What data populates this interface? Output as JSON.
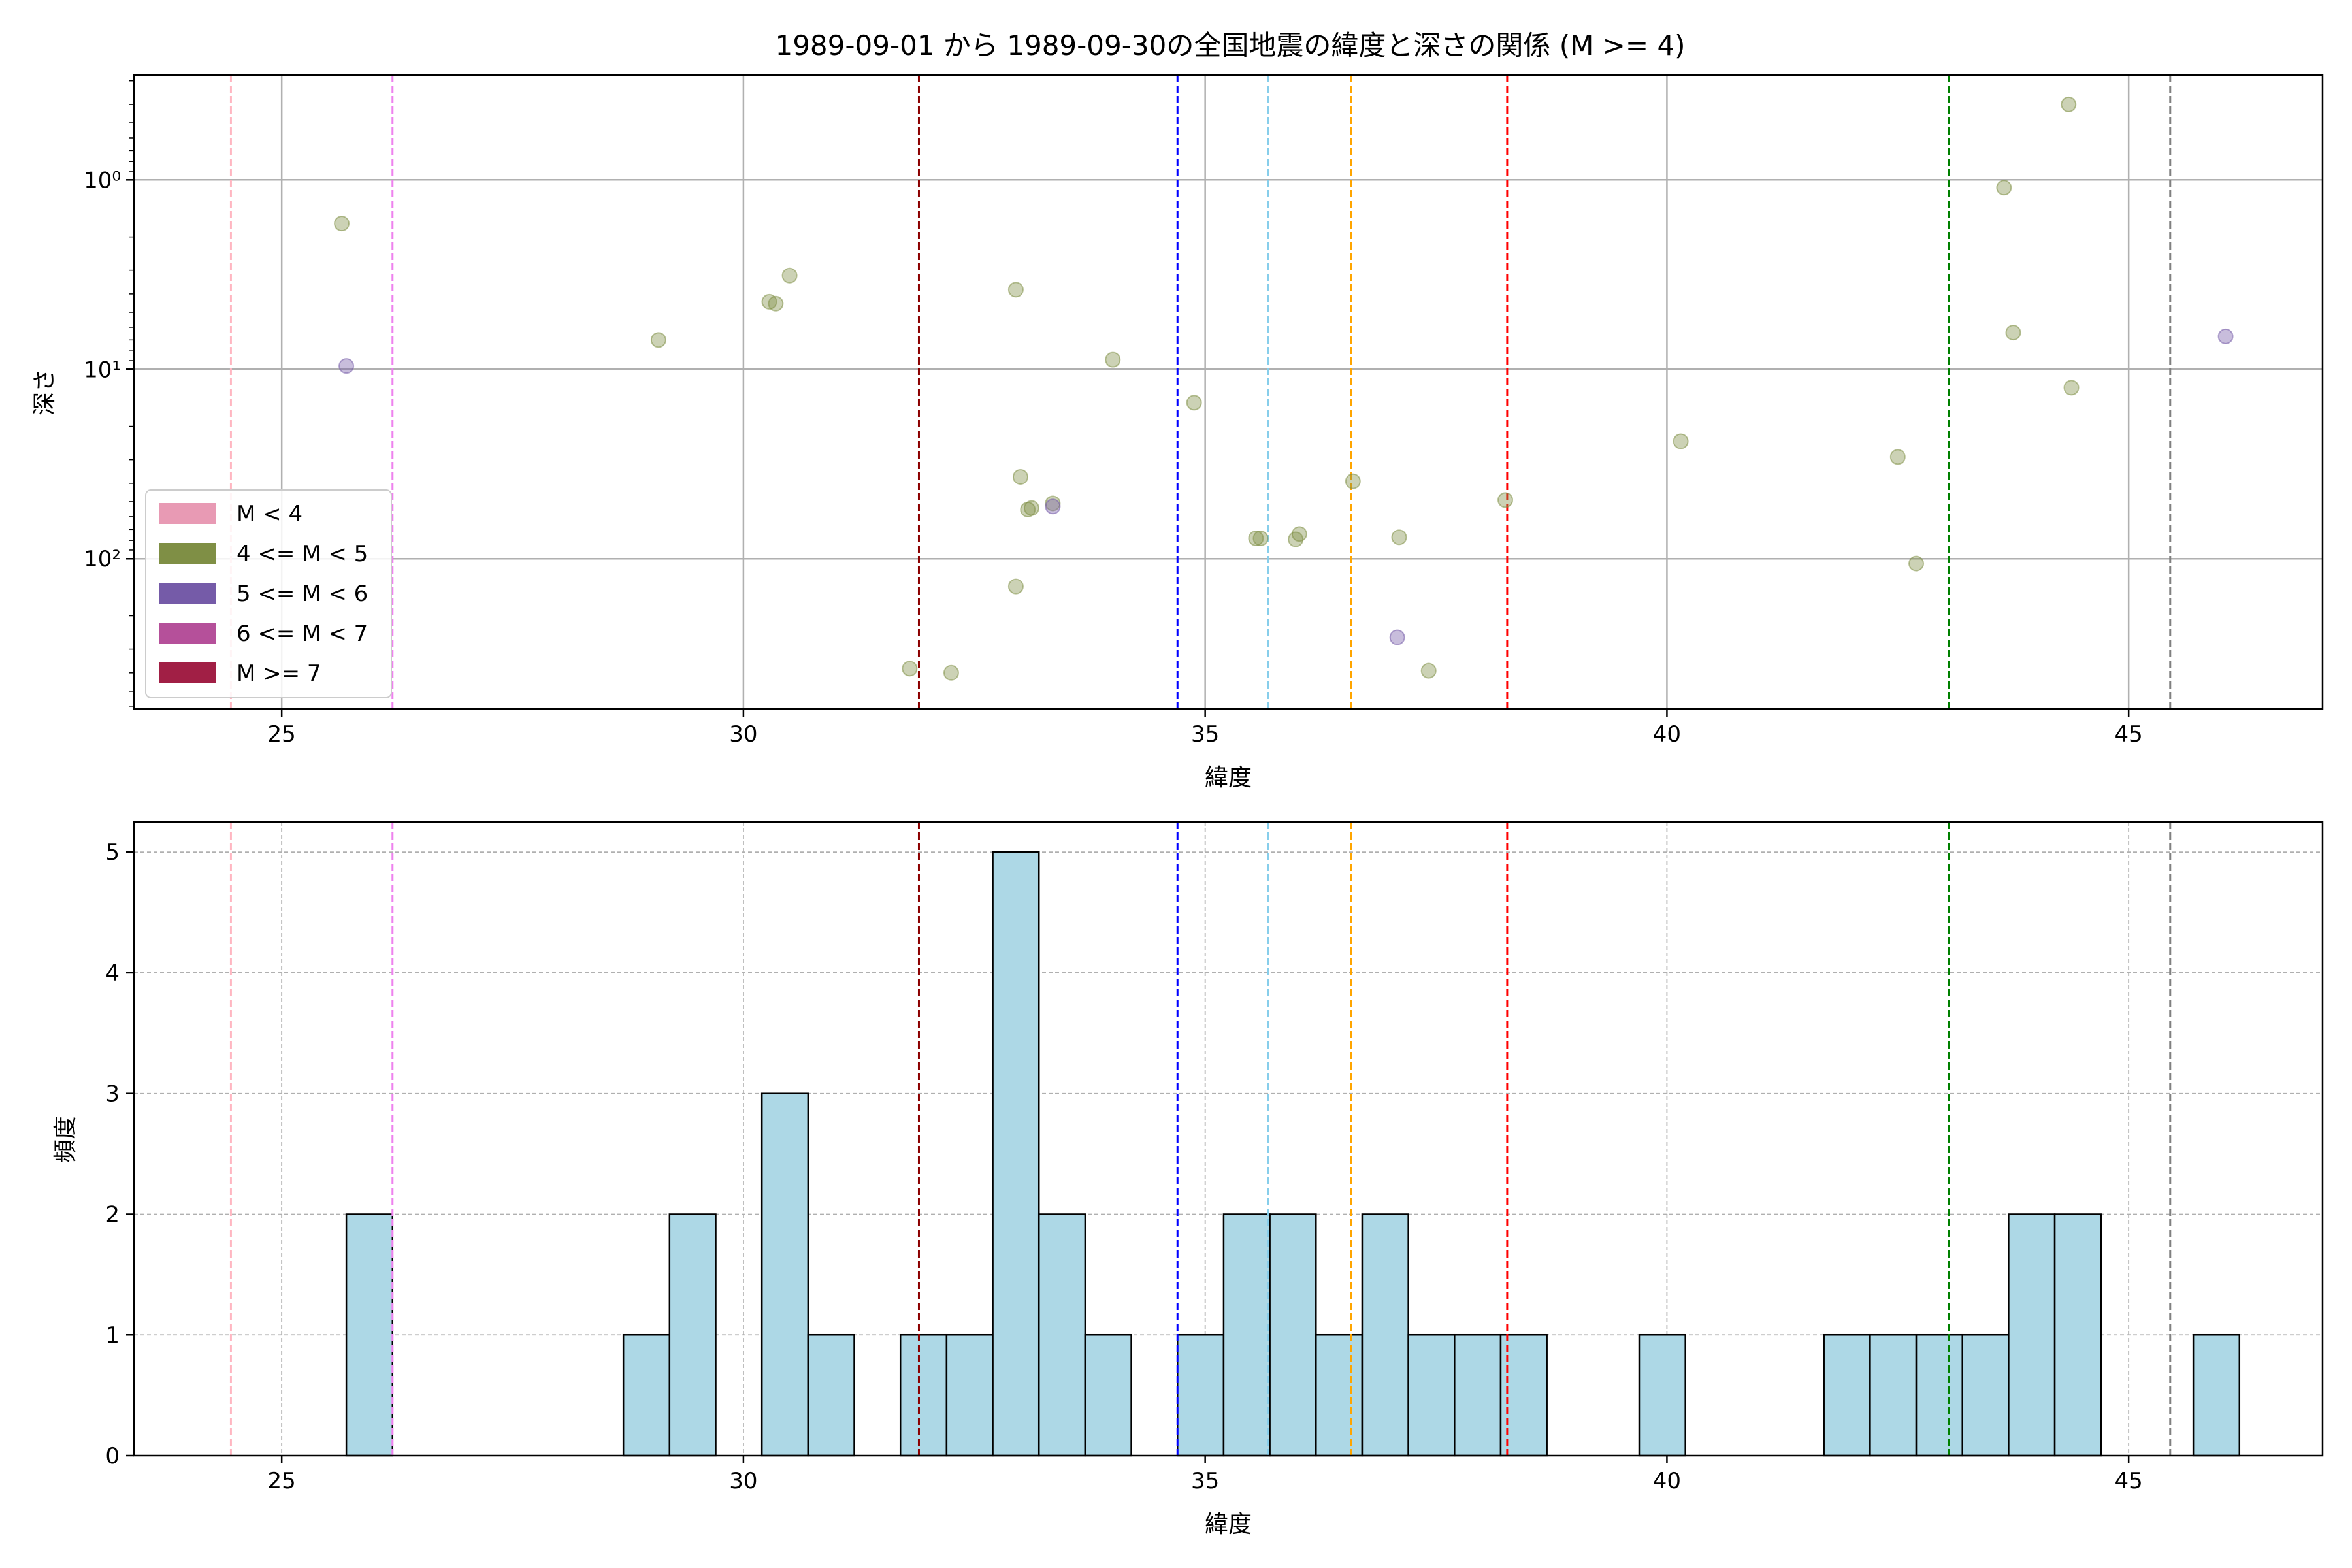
{
  "figure": {
    "title": "1989-09-01 から 1989-09-30の全国地震の緯度と深さの関係 (M >= 4)"
  },
  "colors": {
    "m_lt4": "#e89ab4",
    "m_4_5": "#7f8f45",
    "m_5_6": "#755ba8",
    "m_6_7": "#b5509a",
    "m_ge7": "#a11f45",
    "hist_fill": "#add8e6",
    "grid": "#b0b0b0"
  },
  "chart_data": [
    {
      "type": "scatter",
      "title": "1989-09-01 から 1989-09-30の全国地震の緯度と深さの関係 (M >= 4)",
      "xlabel": "緯度",
      "ylabel": "深さ",
      "xlim": [
        23.4,
        47.1
      ],
      "ylim": [
        620,
        0.28
      ],
      "yscale": "log",
      "y_inverted": true,
      "x_ticks": [
        25,
        30,
        35,
        40,
        45
      ],
      "y_ticks": [
        {
          "value": 1,
          "label": "10⁰"
        },
        {
          "value": 10,
          "label": "10¹"
        },
        {
          "value": 100,
          "label": "10²"
        }
      ],
      "grid": true,
      "legend": {
        "position": "lower-left",
        "entries": [
          {
            "label": "M < 4",
            "color": "#e89ab4"
          },
          {
            "label": "4 <= M < 5",
            "color": "#7f8f45"
          },
          {
            "label": "5 <= M < 6",
            "color": "#755ba8"
          },
          {
            "label": "6 <= M < 7",
            "color": "#b5509a"
          },
          {
            "label": "M >= 7",
            "color": "#a11f45"
          }
        ]
      },
      "vlines": [
        {
          "x": 24.45,
          "color": "#ffb6c1"
        },
        {
          "x": 26.2,
          "color": "#ee82ee"
        },
        {
          "x": 31.9,
          "color": "#8b0000"
        },
        {
          "x": 34.7,
          "color": "#0000ff"
        },
        {
          "x": 35.68,
          "color": "#87ceeb"
        },
        {
          "x": 36.58,
          "color": "#ffa500"
        },
        {
          "x": 38.27,
          "color": "#ff0000"
        },
        {
          "x": 43.05,
          "color": "#008000"
        },
        {
          "x": 45.45,
          "color": "#808080"
        }
      ],
      "series": [
        {
          "color": "#7f8f45",
          "points": [
            {
              "x": 25.65,
              "y": 1.7
            },
            {
              "x": 29.08,
              "y": 7.0
            },
            {
              "x": 30.28,
              "y": 4.4
            },
            {
              "x": 30.35,
              "y": 4.5
            },
            {
              "x": 30.5,
              "y": 3.2
            },
            {
              "x": 32.95,
              "y": 3.8
            },
            {
              "x": 34.0,
              "y": 8.9
            },
            {
              "x": 34.88,
              "y": 15.0
            },
            {
              "x": 31.8,
              "y": 380
            },
            {
              "x": 32.25,
              "y": 400
            },
            {
              "x": 32.95,
              "y": 140
            },
            {
              "x": 33.0,
              "y": 37
            },
            {
              "x": 33.08,
              "y": 55
            },
            {
              "x": 33.12,
              "y": 54
            },
            {
              "x": 33.35,
              "y": 51
            },
            {
              "x": 35.55,
              "y": 78
            },
            {
              "x": 35.6,
              "y": 78
            },
            {
              "x": 35.98,
              "y": 79
            },
            {
              "x": 36.02,
              "y": 74
            },
            {
              "x": 36.6,
              "y": 39
            },
            {
              "x": 37.1,
              "y": 77
            },
            {
              "x": 37.42,
              "y": 390
            },
            {
              "x": 38.25,
              "y": 49
            },
            {
              "x": 40.15,
              "y": 24
            },
            {
              "x": 42.5,
              "y": 29
            },
            {
              "x": 42.7,
              "y": 106
            },
            {
              "x": 43.65,
              "y": 1.1
            },
            {
              "x": 43.75,
              "y": 6.4
            },
            {
              "x": 44.35,
              "y": 0.4
            },
            {
              "x": 44.38,
              "y": 12.5
            }
          ]
        },
        {
          "color": "#755ba8",
          "points": [
            {
              "x": 25.7,
              "y": 9.6
            },
            {
              "x": 33.35,
              "y": 53
            },
            {
              "x": 37.08,
              "y": 260
            },
            {
              "x": 46.05,
              "y": 6.7
            }
          ]
        }
      ]
    },
    {
      "type": "bar",
      "xlabel": "緯度",
      "ylabel": "頻度",
      "xlim": [
        23.4,
        47.1
      ],
      "ylim": [
        0,
        5.25
      ],
      "x_ticks": [
        25,
        30,
        35,
        40,
        45
      ],
      "y_ticks": [
        0,
        1,
        2,
        3,
        4,
        5
      ],
      "grid": true,
      "bin_width": 0.5,
      "bins": [
        {
          "start": 25.7,
          "count": 2
        },
        {
          "start": 28.7,
          "count": 1
        },
        {
          "start": 29.2,
          "count": 2
        },
        {
          "start": 30.2,
          "count": 3
        },
        {
          "start": 30.7,
          "count": 1
        },
        {
          "start": 31.7,
          "count": 1
        },
        {
          "start": 32.2,
          "count": 1
        },
        {
          "start": 32.7,
          "count": 5
        },
        {
          "start": 33.2,
          "count": 2
        },
        {
          "start": 33.7,
          "count": 1
        },
        {
          "start": 34.7,
          "count": 1
        },
        {
          "start": 35.2,
          "count": 2
        },
        {
          "start": 35.7,
          "count": 2
        },
        {
          "start": 36.2,
          "count": 1
        },
        {
          "start": 36.7,
          "count": 2
        },
        {
          "start": 37.2,
          "count": 1
        },
        {
          "start": 37.7,
          "count": 1
        },
        {
          "start": 38.2,
          "count": 1
        },
        {
          "start": 39.7,
          "count": 1
        },
        {
          "start": 41.7,
          "count": 1
        },
        {
          "start": 42.2,
          "count": 1
        },
        {
          "start": 42.7,
          "count": 1
        },
        {
          "start": 43.2,
          "count": 1
        },
        {
          "start": 43.7,
          "count": 2
        },
        {
          "start": 44.2,
          "count": 2
        },
        {
          "start": 45.7,
          "count": 1
        }
      ],
      "vlines": [
        {
          "x": 24.45,
          "color": "#ffb6c1"
        },
        {
          "x": 26.2,
          "color": "#ee82ee"
        },
        {
          "x": 31.9,
          "color": "#8b0000"
        },
        {
          "x": 34.7,
          "color": "#0000ff"
        },
        {
          "x": 35.68,
          "color": "#87ceeb"
        },
        {
          "x": 36.58,
          "color": "#ffa500"
        },
        {
          "x": 38.27,
          "color": "#ff0000"
        },
        {
          "x": 43.05,
          "color": "#008000"
        },
        {
          "x": 45.45,
          "color": "#808080"
        }
      ]
    }
  ]
}
